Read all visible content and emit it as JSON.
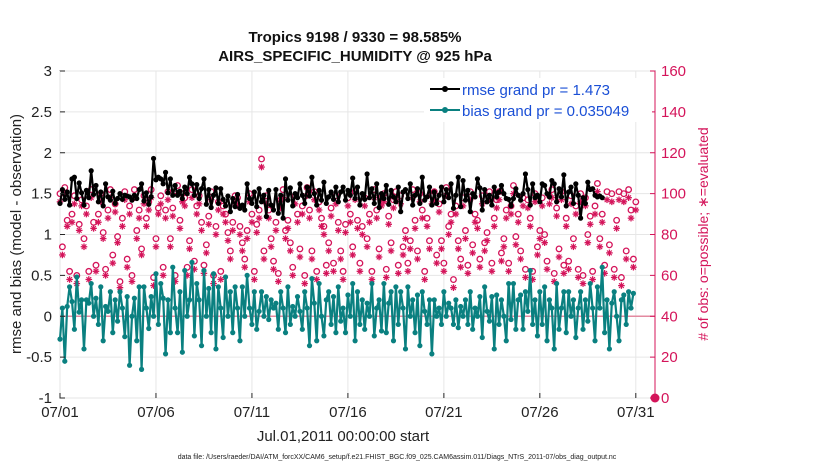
{
  "chart_data": {
    "type": "line",
    "title": "Tropics 9198 / 9330 = 98.585%",
    "subtitle": "AIRS_SPECIFIC_HUMIDITY @ 925 hPa",
    "xlabel": "Jul.01,2011 00:00:00 start",
    "ylabel": "rmse and bias (model - observation)",
    "ylabel_right": "# of obs: o=possible; ∗=evaluated",
    "footnote": "data file: /Users/raeder/DAI/ATM_forcXX/CAM6_setup/f.e21.FHIST_BGC.f09_025.CAM6assim.011/Diags_NTrS_2011-07/obs_diag_output.nc",
    "x_tick_labels": [
      "07/01",
      "07/06",
      "07/11",
      "07/16",
      "07/21",
      "07/26",
      "07/31"
    ],
    "x_tick_values": [
      1,
      6,
      11,
      16,
      21,
      26,
      31
    ],
    "xlim": [
      1,
      32
    ],
    "ylim": [
      -1,
      3
    ],
    "y_tick_values": [
      -1,
      -0.5,
      0,
      0.5,
      1,
      1.5,
      2,
      2.5,
      3
    ],
    "y_tick_labels": [
      "-1",
      "-0.5",
      "0",
      "0.5",
      "1",
      "1.5",
      "2",
      "2.5",
      "3"
    ],
    "ylim_right": [
      0,
      160
    ],
    "y_right_tick_values": [
      0,
      20,
      40,
      60,
      80,
      100,
      120,
      140,
      160
    ],
    "y_right_tick_labels": [
      "0",
      "20",
      "40",
      "60",
      "80",
      "100",
      "120",
      "140",
      "160"
    ],
    "legend_position": "top-right",
    "series": [
      {
        "name": "rmse grand pr = 1.473",
        "axis": "left",
        "color": "#000000",
        "values": [
          1.38,
          1.55,
          1.43,
          1.52,
          1.36,
          1.68,
          1.7,
          1.44,
          1.63,
          1.51,
          1.36,
          1.54,
          1.45,
          1.78,
          1.49,
          1.6,
          1.4,
          1.52,
          1.35,
          1.62,
          1.46,
          1.42,
          1.53,
          1.38,
          1.44,
          1.5,
          1.43,
          1.48,
          1.47,
          1.46,
          1.42,
          1.48,
          1.44,
          1.55,
          1.62,
          1.41,
          1.51,
          1.37,
          1.46,
          1.93,
          1.67,
          1.7,
          1.68,
          1.62,
          1.76,
          1.51,
          1.68,
          1.48,
          1.6,
          1.48,
          1.53,
          1.44,
          1.58,
          1.5,
          1.7,
          1.62,
          1.48,
          1.61,
          1.44,
          1.56,
          1.68,
          1.37,
          1.55,
          1.33,
          1.48,
          1.57,
          1.38,
          1.56,
          1.43,
          1.35,
          1.47,
          1.28,
          1.44,
          1.34,
          1.49,
          1.32,
          1.36,
          1.3,
          1.62,
          1.44,
          1.38,
          1.52,
          1.34,
          1.56,
          1.4,
          1.48,
          1.22,
          1.54,
          1.36,
          1.3,
          1.55,
          1.26,
          1.48,
          1.2,
          1.68,
          1.42,
          1.57,
          1.35,
          1.5,
          1.45,
          1.62,
          1.48,
          1.38,
          1.58,
          1.47,
          1.7,
          1.5,
          1.36,
          1.54,
          1.42,
          1.64,
          1.38,
          1.46,
          1.52,
          1.43,
          1.58,
          1.4,
          1.52,
          1.58,
          1.42,
          1.54,
          1.48,
          1.69,
          1.44,
          1.58,
          1.36,
          1.5,
          1.43,
          1.74,
          1.45,
          1.56,
          1.38,
          1.62,
          1.33,
          1.5,
          1.44,
          1.6,
          1.37,
          1.54,
          1.46,
          1.4,
          1.58,
          1.28,
          1.52,
          1.55,
          1.44,
          1.62,
          1.36,
          1.48,
          1.56,
          1.38,
          1.7,
          1.42,
          1.46,
          1.58,
          1.36,
          1.52,
          1.38,
          1.48,
          1.58,
          1.4,
          1.55,
          1.45,
          1.62,
          1.32,
          1.48,
          1.7,
          1.34,
          1.66,
          1.42,
          1.54,
          1.28,
          1.5,
          1.46,
          1.68,
          1.57,
          1.3,
          1.55,
          1.4,
          1.48,
          1.36,
          1.58,
          1.46,
          1.52,
          1.6,
          1.5,
          1.44,
          1.43,
          1.35,
          1.44,
          1.56,
          1.48,
          1.42,
          1.5,
          1.74,
          1.55,
          1.36,
          1.62,
          1.45,
          1.48,
          1.4,
          1.62,
          1.6,
          1.5,
          1.46,
          1.66,
          1.62,
          1.4,
          1.56,
          1.46,
          1.73,
          1.35,
          1.52,
          1.58,
          1.38,
          1.62,
          1.48,
          1.2,
          1.45,
          1.38,
          1.64,
          1.55,
          1.56,
          1.48,
          1.46,
          1.47,
          1.45
        ]
      },
      {
        "name": "bias grand pr = 0.035049",
        "axis": "left",
        "color": "#0a8080",
        "values": [
          -0.28,
          0.1,
          -0.55,
          0.12,
          0.36,
          0.18,
          -0.16,
          0.48,
          0.05,
          0.2,
          -0.4,
          0.2,
          0.16,
          0.4,
          0.0,
          0.22,
          -0.1,
          0.36,
          -0.3,
          0.12,
          0.06,
          0.3,
          -0.2,
          0.2,
          -0.06,
          0.3,
          0.1,
          -0.25,
          0.24,
          -0.6,
          0.0,
          0.22,
          -0.3,
          0.36,
          -0.65,
          0.36,
          0.1,
          -0.15,
          0.24,
          0.0,
          0.52,
          -0.1,
          0.4,
          0.22,
          -0.46,
          0.2,
          -0.2,
          0.6,
          0.1,
          -0.2,
          0.3,
          -0.44,
          0.56,
          0.0,
          0.2,
          0.66,
          -0.24,
          0.4,
          0.2,
          -0.36,
          0.56,
          0.0,
          0.34,
          -0.2,
          0.52,
          -0.4,
          0.36,
          0.1,
          -0.26,
          0.48,
          0.0,
          0.3,
          -0.2,
          0.36,
          0.1,
          -0.3,
          0.36,
          0.0,
          0.5,
          0.1,
          -0.1,
          0.3,
          -0.16,
          0.06,
          0.3,
          0.0,
          0.24,
          -0.04,
          0.2,
          0.1,
          0.16,
          -0.16,
          0.3,
          0.1,
          -0.2,
          0.36,
          -0.1,
          0.12,
          0.0,
          0.24,
          0.06,
          -0.16,
          0.3,
          0.1,
          -0.36,
          0.46,
          0.16,
          -0.3,
          0.4,
          0.0,
          -0.24,
          0.2,
          0.3,
          -0.1,
          0.24,
          -0.2,
          0.36,
          -0.06,
          0.1,
          -0.2,
          0.26,
          0.0,
          0.4,
          -0.3,
          0.3,
          -0.1,
          0.2,
          -0.16,
          0.16,
          0.0,
          0.4,
          -0.24,
          0.1,
          0.2,
          -0.18,
          0.4,
          -0.2,
          0.16,
          0.3,
          -0.3,
          0.36,
          -0.1,
          0.3,
          0.1,
          -0.4,
          0.36,
          0.0,
          0.2,
          -0.2,
          0.26,
          -0.36,
          0.3,
          0.06,
          -0.1,
          0.2,
          -0.46,
          0.2,
          0.0,
          0.1,
          -0.1,
          0.3,
          0.0,
          0.16,
          0.1,
          -0.1,
          0.2,
          -0.14,
          0.12,
          0.0,
          0.2,
          -0.1,
          0.3,
          -0.16,
          0.1,
          0.0,
          0.24,
          -0.26,
          0.36,
          0.06,
          -0.06,
          0.24,
          -0.4,
          0.26,
          -0.1,
          0.2,
          0.0,
          -0.3,
          0.4,
          -0.04,
          0.4,
          -0.16,
          0.2,
          0.26,
          -0.16,
          0.3,
          0.06,
          0.56,
          -0.1,
          0.2,
          -0.24,
          0.3,
          -0.1,
          0.36,
          -0.3,
          0.2,
          0.1,
          -0.4,
          0.4,
          -0.16,
          0.1,
          0.3,
          -0.2,
          0.3,
          0.0,
          0.2,
          -0.26,
          0.1,
          0.3,
          -0.16,
          0.2,
          -0.06,
          0.4,
          0.1,
          -0.3,
          0.36,
          0.1,
          0.6,
          -0.2,
          0.2,
          -0.4,
          0.16,
          0.3,
          0.0,
          -0.3,
          0.2,
          0.26,
          -0.1,
          0.3,
          0.1,
          0.28
        ]
      },
      {
        "name": "obs possible",
        "axis": "right",
        "marker": "o",
        "color": "#d4145a",
        "values": [
          98,
          72,
          101,
          85,
          60,
          88,
          97,
          58,
          83,
          95,
          76,
          92,
          60,
          100,
          84,
          63,
          88,
          98,
          79,
          61,
          90,
          100,
          68,
          93,
          77,
          55,
          86,
          99,
          66,
          92,
          58,
          100,
          80,
          90,
          71,
          97,
          86,
          94,
          100,
          57,
          76,
          91,
          97,
          62,
          90,
          99,
          76,
          91,
          58,
          102,
          85,
          98,
          96,
          62,
          75,
          100,
          65,
          92,
          97,
          84,
          63,
          73,
          87,
          99,
          58,
          82,
          94,
          60,
          92,
          88,
          79,
          70,
          84,
          97,
          96,
          82,
          74,
          66,
          80,
          98,
          88,
          60,
          83,
          90,
          115,
          70,
          97,
          90,
          76,
          65,
          84,
          59,
          95,
          100,
          80,
          85,
          74,
          62,
          97,
          88,
          71,
          92,
          58,
          101,
          90,
          70,
          99,
          60,
          94,
          86,
          82,
          63,
          74,
          91,
          64,
          97,
          84,
          70,
          60,
          83,
          96,
          88,
          72,
          99,
          85,
          64,
          82,
          96,
          76,
          88,
          60,
          100,
          90,
          71,
          96,
          98,
          61,
          87,
          74,
          95,
          99,
          63,
          97,
          72,
          80,
          64,
          75,
          100,
          85,
          70,
          98,
          90,
          60,
          86,
          75,
          97,
          99,
          68,
          93,
          75,
          64,
          101,
          82,
          88,
          56,
          92,
          75,
          66,
          96,
          80,
          63,
          99,
          73,
          88,
          85,
          66,
          97,
          74,
          79,
          99,
          64,
          86,
          95,
          99,
          69,
          76,
          90,
          64,
          92,
          102,
          77,
          88,
          70,
          96,
          61,
          95,
          86,
          60,
          98,
          72,
          80,
          96,
          78,
          65,
          97,
          100,
          59,
          91,
          71,
          99,
          63,
          86,
          65,
          97,
          76,
          92,
          61,
          98,
          58,
          96,
          78,
          87,
          60,
          92,
          103,
          76,
          88,
          63,
          99,
          73,
          98,
          61,
          85,
          99,
          57,
          98,
          70,
          100,
          90,
          66,
          94
        ]
      },
      {
        "name": "obs evaluated",
        "axis": "right",
        "marker": "*",
        "color": "#d4145a",
        "values": [
          96,
          70,
          100,
          84,
          58,
          86,
          95,
          56,
          82,
          94,
          74,
          90,
          58,
          98,
          83,
          62,
          86,
          96,
          78,
          60,
          88,
          98,
          66,
          91,
          76,
          54,
          84,
          97,
          64,
          90,
          57,
          98,
          78,
          88,
          70,
          95,
          84,
          92,
          98,
          55,
          74,
          90,
          95,
          60,
          88,
          97,
          74,
          89,
          57,
          100,
          83,
          96,
          94,
          60,
          73,
          98,
          63,
          90,
          95,
          82,
          61,
          71,
          85,
          97,
          56,
          80,
          92,
          58,
          90,
          86,
          77,
          68,
          82,
          95,
          94,
          80,
          72,
          64,
          78,
          96,
          86,
          58,
          81,
          88,
          113,
          68,
          95,
          88,
          74,
          63,
          82,
          57,
          93,
          98,
          78,
          83,
          72,
          60,
          95,
          86,
          69,
          90,
          56,
          99,
          88,
          68,
          97,
          58,
          92,
          84,
          80,
          61,
          72,
          89,
          62,
          95,
          82,
          68,
          58,
          81,
          94,
          86,
          70,
          97,
          83,
          62,
          80,
          94,
          74,
          86,
          58,
          98,
          88,
          69,
          94,
          96,
          59,
          85,
          72,
          93,
          97,
          61,
          95,
          70,
          78,
          62,
          73,
          98,
          83,
          68,
          96,
          88,
          58,
          84,
          73,
          95,
          97,
          66,
          91,
          73,
          62,
          99,
          80,
          86,
          54,
          90,
          73,
          64,
          94,
          78,
          61,
          97,
          71,
          86,
          83,
          64,
          95,
          72,
          77,
          97,
          62,
          84,
          93,
          97,
          67,
          74,
          88,
          62,
          90,
          100,
          75,
          86,
          68,
          94,
          59,
          93,
          84,
          58,
          96,
          70,
          78,
          94,
          76,
          63,
          95,
          98,
          57,
          89,
          69,
          97,
          61,
          84,
          63,
          95,
          74,
          90,
          59,
          96,
          56,
          94,
          76,
          85,
          58,
          90,
          101,
          74,
          86,
          61,
          97,
          71,
          96,
          59,
          83,
          97,
          55,
          96,
          68,
          98,
          88,
          64,
          92
        ]
      }
    ]
  }
}
